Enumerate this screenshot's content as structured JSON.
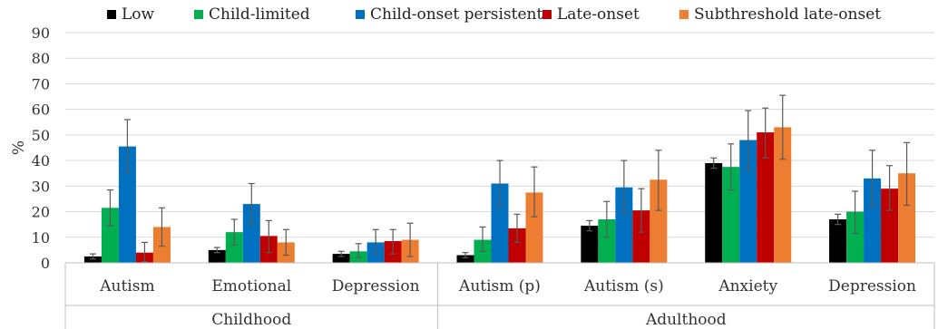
{
  "chart_data": {
    "type": "bar",
    "ylabel": "%",
    "ylim": [
      0,
      90
    ],
    "yticks": [
      0,
      10,
      20,
      30,
      40,
      50,
      60,
      70,
      80,
      90
    ],
    "grid": true,
    "legend_position": "top",
    "categories": [
      "Autism",
      "Emotional",
      "Depression",
      "Autism (p)",
      "Autism (s)",
      "Anxiety",
      "Depression"
    ],
    "groups": [
      {
        "label": "Childhood",
        "count": 3
      },
      {
        "label": "Adulthood",
        "count": 4
      }
    ],
    "series": [
      {
        "name": "Low",
        "color": "#000000",
        "values": [
          2.5,
          5,
          3.5,
          3,
          14.5,
          39,
          17
        ],
        "err_low": [
          1.5,
          4,
          2.5,
          2,
          12.5,
          37,
          15
        ],
        "err_high": [
          3.5,
          6,
          4.5,
          4,
          16.5,
          41,
          19
        ]
      },
      {
        "name": "Child-limited",
        "color": "#00b050",
        "values": [
          21.5,
          12,
          4.5,
          9,
          17,
          37.5,
          20
        ],
        "err_low": [
          14.5,
          7,
          2,
          4.5,
          10,
          28.5,
          11.5
        ],
        "err_high": [
          28.5,
          17,
          7.5,
          14,
          24,
          46.5,
          28
        ]
      },
      {
        "name": "Child-onset persistent",
        "color": "#0070c0",
        "values": [
          45.5,
          23,
          8,
          31,
          29.5,
          48,
          33
        ],
        "err_low": [
          35.5,
          15,
          3.5,
          22,
          19.5,
          36.5,
          22
        ],
        "err_high": [
          56,
          31,
          13,
          40,
          40,
          59.5,
          44
        ]
      },
      {
        "name": "Late-onset",
        "color": "#c00000",
        "values": [
          4,
          10.5,
          8.5,
          13.5,
          20.5,
          51,
          29
        ],
        "err_low": [
          0.5,
          4,
          3.5,
          8,
          12,
          41,
          20.5
        ],
        "err_high": [
          8,
          16.5,
          13,
          19,
          29,
          60.5,
          38
        ]
      },
      {
        "name": "Subthreshold late-onset",
        "color": "#ed7d31",
        "values": [
          14,
          8,
          9,
          27.5,
          32.5,
          53,
          35
        ],
        "err_low": [
          6.5,
          3,
          2.5,
          18,
          20.5,
          40.5,
          22.5
        ],
        "err_high": [
          21.5,
          13,
          15.5,
          37.5,
          44,
          65.5,
          47
        ]
      }
    ]
  }
}
